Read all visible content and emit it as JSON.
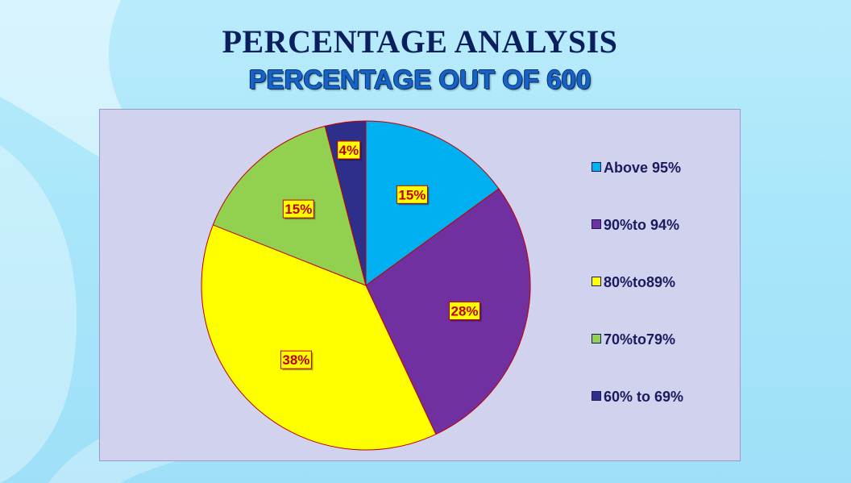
{
  "header": {
    "title": "PERCENTAGE ANALYSIS",
    "subtitle": "PERCENTAGE OUT OF 600"
  },
  "chart_data": {
    "type": "pie",
    "title": "PERCENTAGE OUT OF 600",
    "categories": [
      "Above 95%",
      "90%to 94%",
      "80%to89%",
      "70%to79%",
      "60% to 69%"
    ],
    "values": [
      15,
      28,
      38,
      15,
      4
    ],
    "data_labels": [
      "15%",
      "28%",
      "38%",
      "15%",
      "4%"
    ],
    "colors": [
      "#00b0f0",
      "#7030a0",
      "#ffff00",
      "#92d050",
      "#2e2f8a"
    ],
    "slice_border_color": "#c00000",
    "label_text_color": "#c00000",
    "label_box_color": "#ffff00",
    "legend_position": "right",
    "start_angle": "12 o'clock",
    "direction": "clockwise"
  }
}
